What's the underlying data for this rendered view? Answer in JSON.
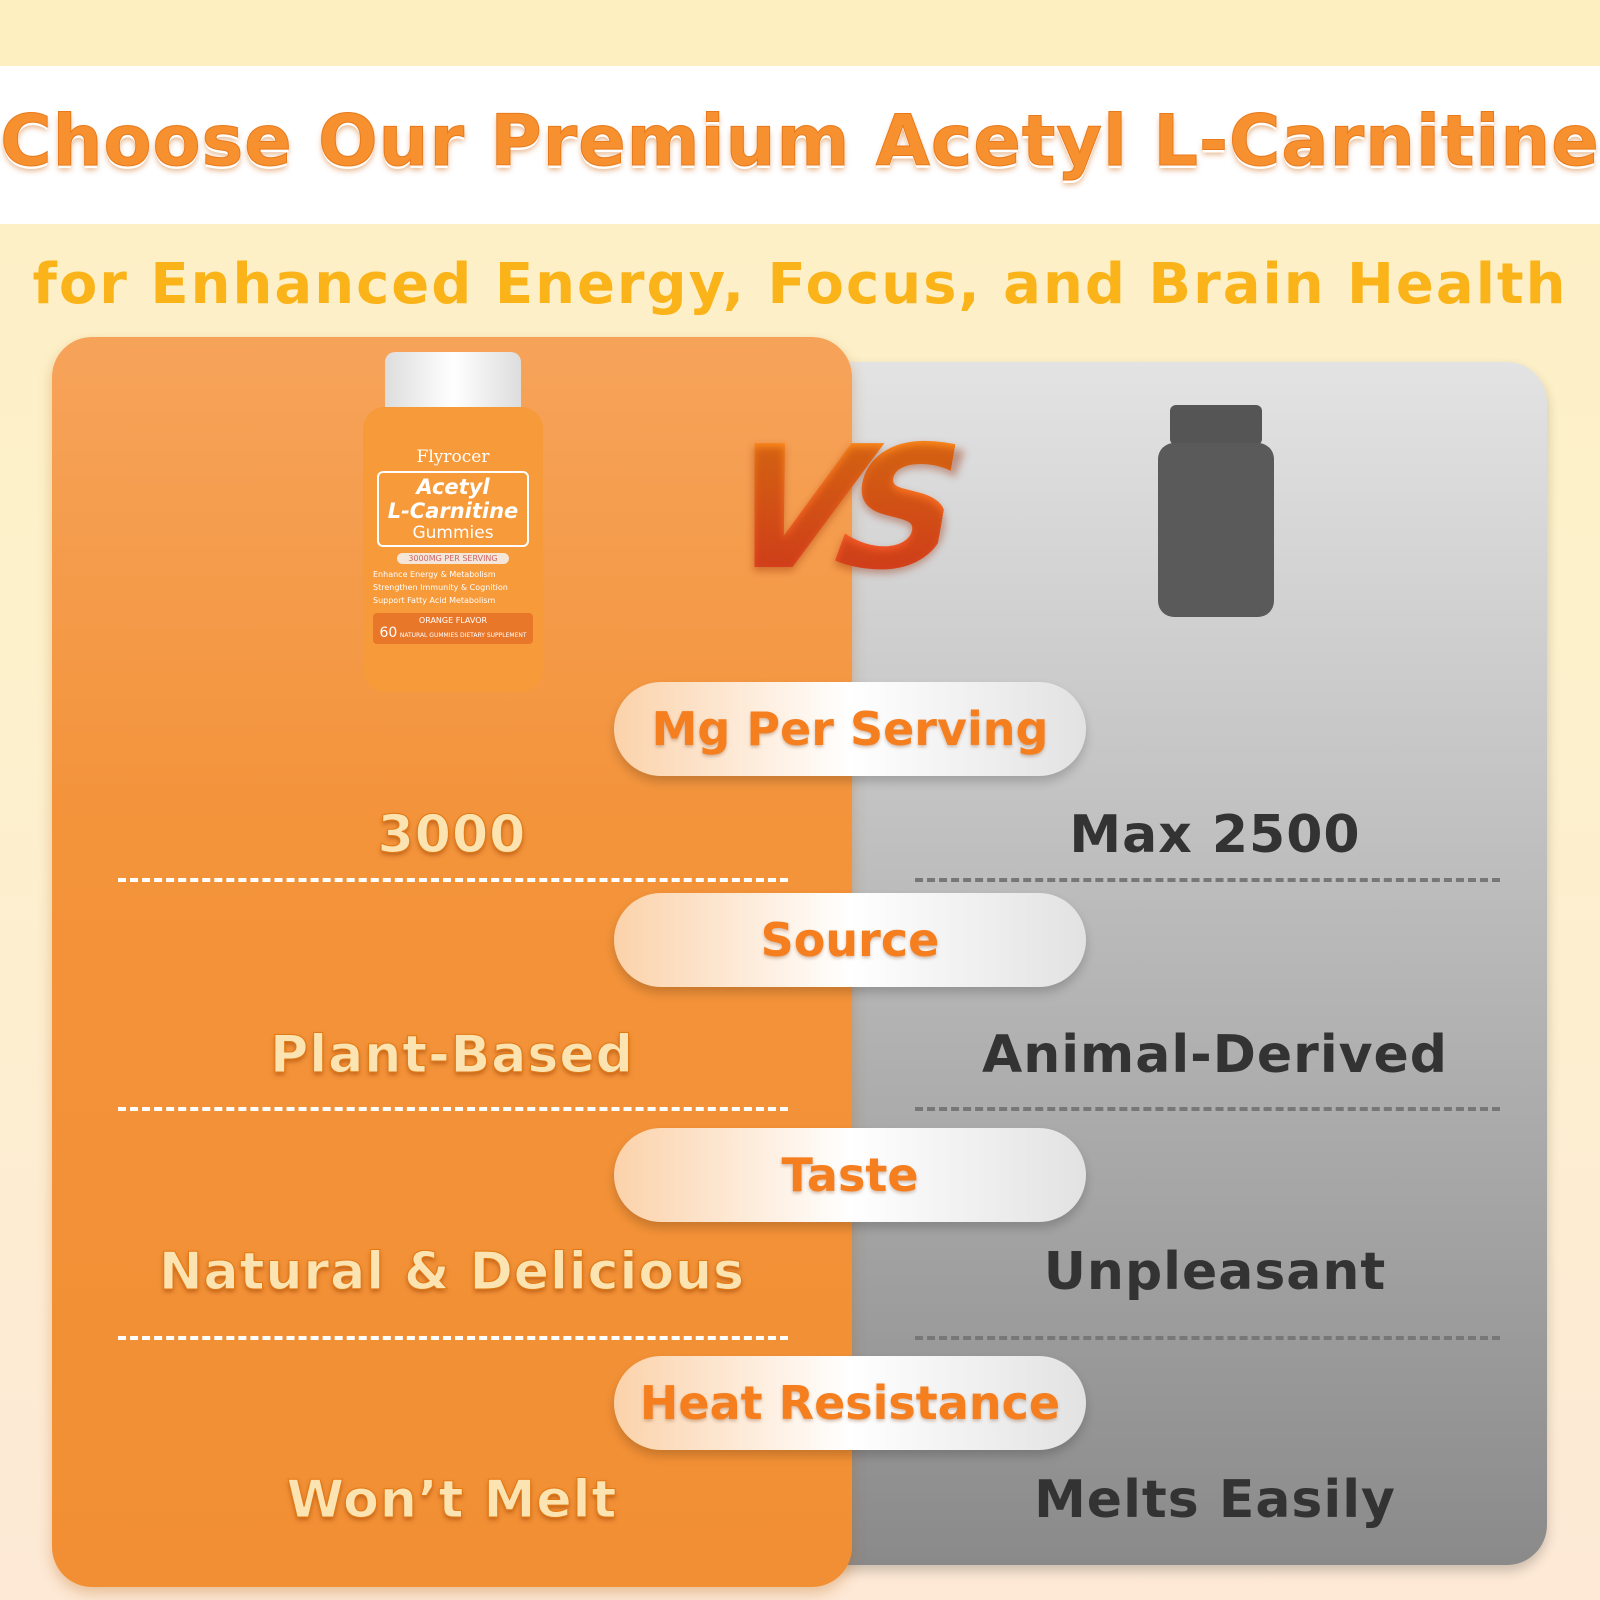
{
  "header": {
    "title": "Choose Our Premium Acetyl L-Carnitine",
    "subtitle": "for Enhanced Energy, Focus, and Brain Health"
  },
  "vs_label": "VS",
  "product": {
    "brand": "Flyrocer",
    "name_line1": "Acetyl",
    "name_line2": "L-Carnitine",
    "name_line3": "Gummies",
    "serving": "3000MG PER SERVING",
    "features": [
      "Enhance Energy & Metabolism",
      "Strengthen Immunity & Cognition",
      "Support Fatty Acid Metabolism"
    ],
    "flavor": "ORANGE FLAVOR",
    "count": "60",
    "count_text": "NATURAL GUMMIES DIETARY SUPPLEMENT"
  },
  "rows": [
    {
      "label": "Mg Per Serving",
      "ours": "3000",
      "theirs": "Max 2500"
    },
    {
      "label": "Source",
      "ours": "Plant-Based",
      "theirs": "Animal-Derived"
    },
    {
      "label": "Taste",
      "ours": "Natural & Delicious",
      "theirs": "Unpleasant"
    },
    {
      "label": "Heat Resistance",
      "ours": "Won’t Melt",
      "theirs": "Melts Easily"
    }
  ],
  "colors": {
    "orange": "#f3933a",
    "title": "#f7902e",
    "subtitle": "#fbb31a",
    "gray": "#8a8a8a"
  }
}
